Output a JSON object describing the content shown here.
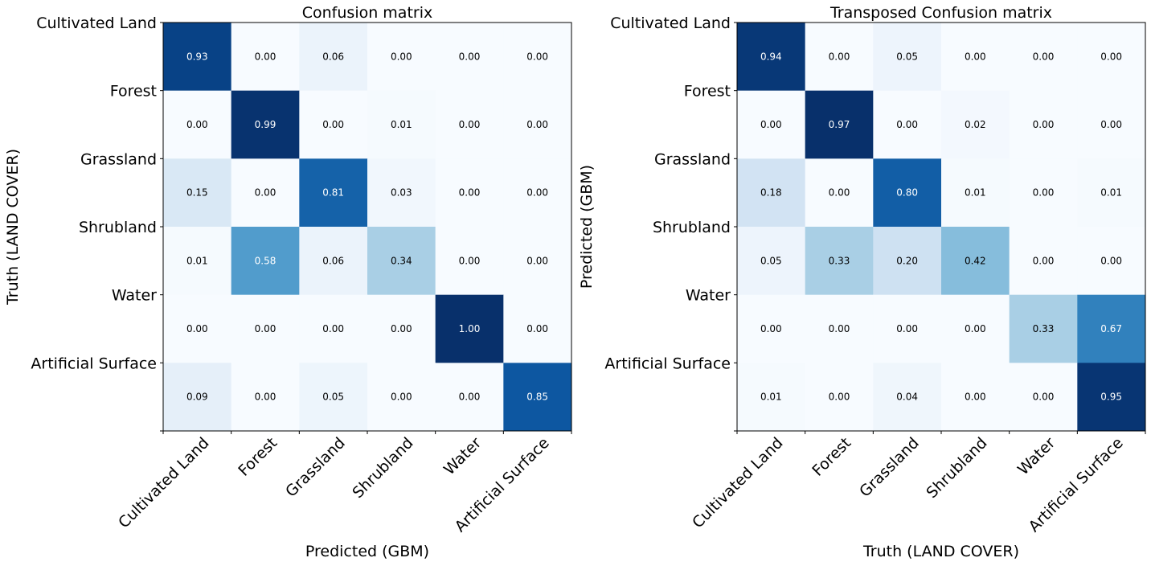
{
  "chart_data": [
    {
      "type": "heatmap",
      "title": "Confusion matrix",
      "xlabel": "Predicted (GBM)",
      "ylabel": "Truth (LAND COVER)",
      "x_categories": [
        "Cultivated Land",
        "Forest",
        "Grassland",
        "Shrubland",
        "Water",
        "Artificial Surface"
      ],
      "y_categories": [
        "Cultivated Land",
        "Forest",
        "Grassland",
        "Shrubland",
        "Water",
        "Artificial Surface"
      ],
      "values": [
        [
          0.93,
          0.0,
          0.06,
          0.0,
          0.0,
          0.0
        ],
        [
          0.0,
          0.99,
          0.0,
          0.01,
          0.0,
          0.0
        ],
        [
          0.15,
          0.0,
          0.81,
          0.03,
          0.0,
          0.0
        ],
        [
          0.01,
          0.58,
          0.06,
          0.34,
          0.0,
          0.0
        ],
        [
          0.0,
          0.0,
          0.0,
          0.0,
          1.0,
          0.0
        ],
        [
          0.09,
          0.0,
          0.05,
          0.0,
          0.0,
          0.85
        ]
      ],
      "colormap": "Blues"
    },
    {
      "type": "heatmap",
      "title": "Transposed Confusion matrix",
      "xlabel": "Truth (LAND COVER)",
      "ylabel": "Predicted (GBM)",
      "x_categories": [
        "Cultivated Land",
        "Forest",
        "Grassland",
        "Shrubland",
        "Water",
        "Artificial Surface"
      ],
      "y_categories": [
        "Cultivated Land",
        "Forest",
        "Grassland",
        "Shrubland",
        "Water",
        "Artificial Surface"
      ],
      "values": [
        [
          0.94,
          0.0,
          0.05,
          0.0,
          0.0,
          0.0
        ],
        [
          0.0,
          0.97,
          0.0,
          0.02,
          0.0,
          0.0
        ],
        [
          0.18,
          0.0,
          0.8,
          0.01,
          0.0,
          0.01
        ],
        [
          0.05,
          0.33,
          0.2,
          0.42,
          0.0,
          0.0
        ],
        [
          0.0,
          0.0,
          0.0,
          0.0,
          0.33,
          0.67
        ],
        [
          0.01,
          0.0,
          0.04,
          0.0,
          0.0,
          0.95
        ]
      ],
      "colormap": "Blues"
    }
  ]
}
